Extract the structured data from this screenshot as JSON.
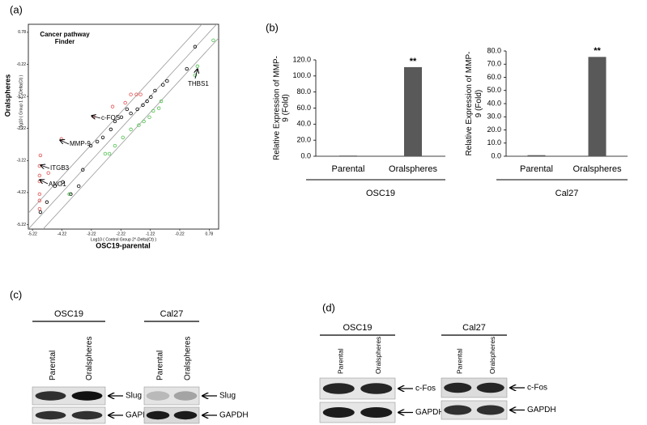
{
  "panel_labels": [
    "(a)",
    "(b)",
    "(c)",
    "(d)"
  ],
  "chart_data": [
    {
      "type": "scatter",
      "title": "Cancer pathway Finder",
      "xlabel": "Log10 ( Control Group 2^-Delta(Ct) )",
      "ylabel": "Log10 ( Group 1 2^-Delta(Ct) )",
      "outer_xlabel": "OSC19-parental",
      "outer_ylabel": "Oralspheres",
      "xlim": [
        -5.36,
        1.1
      ],
      "ylim": [
        -5.36,
        1.03
      ],
      "xticks": [
        -5.22,
        -4.22,
        -3.22,
        -2.22,
        -1.22,
        -0.22,
        0.78
      ],
      "yticks": [
        -5.22,
        -4.22,
        -3.22,
        -2.22,
        -1.22,
        -0.22,
        0.78
      ],
      "annotations": [
        "THBS1",
        "c-FOS",
        "MMP-9",
        "ITGB3",
        "ANG1"
      ],
      "series": [
        {
          "color": "#000000",
          "x": [
            0.3,
            0.02,
            -0.65,
            -0.79,
            -1.06,
            -1.2,
            -1.33,
            -1.47,
            -1.66,
            -1.88,
            -2.01,
            -2.2,
            -2.42,
            -2.56,
            -2.83,
            -3.02,
            -3.24,
            -3.51,
            -3.65,
            -3.92,
            -4.19,
            -4.46,
            -4.73,
            -4.95
          ],
          "values": [
            0.33,
            -0.36,
            -0.74,
            -0.86,
            -1.04,
            -1.24,
            -1.37,
            -1.49,
            -1.62,
            -1.75,
            -1.62,
            -1.87,
            -2.0,
            -2.25,
            -2.5,
            -2.63,
            -2.76,
            -3.51,
            -4.02,
            -4.27,
            -3.89,
            -4.02,
            -4.52,
            -4.83
          ]
        },
        {
          "color": "#e05050",
          "x": [
            -1.88,
            -1.69,
            -1.55,
            -2.07,
            -2.5,
            -3.15,
            -4.24,
            -4.95,
            -4.98,
            -4.68,
            -4.98,
            -4.98,
            -4.98,
            -4.98,
            -4.98
          ],
          "values": [
            -1.16,
            -1.16,
            -1.16,
            -1.42,
            -1.54,
            -1.85,
            -2.55,
            -3.06,
            -3.39,
            -3.61,
            -3.69,
            -3.87,
            -4.27,
            -4.47,
            -4.73
          ]
        },
        {
          "color": "#4cc04c",
          "x": [
            0.92,
            0.38,
            0.3,
            -0.85,
            -0.93,
            -1.12,
            -1.25,
            -1.44,
            -1.61,
            -1.88,
            -2.15,
            -2.42,
            -2.61,
            -2.75,
            -3.97
          ],
          "values": [
            0.53,
            -0.28,
            -0.56,
            -1.37,
            -1.59,
            -1.67,
            -1.87,
            -2.0,
            -2.12,
            -2.25,
            -2.5,
            -2.76,
            -3.01,
            -3.01,
            -4.27
          ]
        }
      ]
    },
    {
      "type": "bar",
      "ylabel": "Relative Expression of MMP-9 (Fold)",
      "categories": [
        "Parental",
        "Oralspheres"
      ],
      "values": [
        0.8,
        111
      ],
      "color": "#595959",
      "ylim": [
        0,
        120
      ],
      "yticks": [
        {
          "value": 0,
          "label": "0.0"
        },
        {
          "value": 20,
          "label": "20.0"
        },
        {
          "value": 40,
          "label": "40.0"
        },
        {
          "value": 60,
          "label": "60.0"
        },
        {
          "value": 80,
          "label": "80.0"
        },
        {
          "value": 100,
          "label": "100.0"
        },
        {
          "value": 120,
          "label": "120.0"
        }
      ],
      "group_label": "OSC19",
      "annotations": [
        {
          "text": "**",
          "category": "Oralspheres"
        }
      ]
    },
    {
      "type": "bar",
      "ylabel": "Relative Expression of MMP-9 (Fold)",
      "categories": [
        "Parental",
        "Oralspheres"
      ],
      "values": [
        0.8,
        75.5
      ],
      "color": "#595959",
      "ylim": [
        0,
        80
      ],
      "yticks": [
        {
          "value": 0,
          "label": "0.0"
        },
        {
          "value": 10,
          "label": "10.0"
        },
        {
          "value": 20,
          "label": "20.0"
        },
        {
          "value": 30,
          "label": "30.0"
        },
        {
          "value": 40,
          "label": "40.0"
        },
        {
          "value": 50,
          "label": "50.0"
        },
        {
          "value": 60,
          "label": "60.0"
        },
        {
          "value": 70,
          "label": "70.0"
        },
        {
          "value": 80,
          "label": "80.0"
        }
      ],
      "group_label": "Cal27",
      "annotations": [
        {
          "text": "**",
          "category": "Oralspheres"
        }
      ]
    }
  ],
  "blots": [
    {
      "groups": [
        {
          "name": "OSC19",
          "lanes": [
            "Parental",
            "Oralspheres"
          ],
          "proteins": [
            "Slug",
            "GAPDH"
          ]
        },
        {
          "name": "Cal27",
          "lanes": [
            "Parental",
            "Oralspheres"
          ],
          "proteins": [
            "Slug",
            "GAPDH"
          ]
        }
      ]
    },
    {
      "groups": [
        {
          "name": "OSC19",
          "lanes": [
            "Parental",
            "Oralspheres"
          ],
          "proteins": [
            "c-Fos",
            "GAPDH"
          ]
        },
        {
          "name": "Cal27",
          "lanes": [
            "Parental",
            "Oralspheres"
          ],
          "proteins": [
            "c-Fos",
            "GAPDH"
          ]
        }
      ]
    }
  ]
}
